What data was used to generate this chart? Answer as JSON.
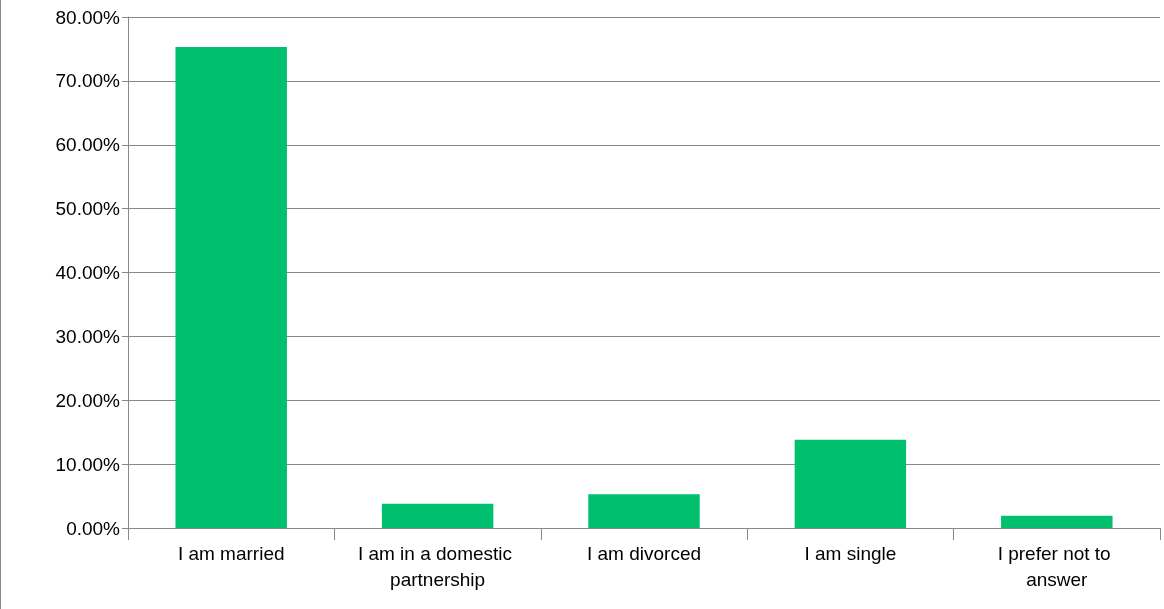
{
  "chart_data": {
    "type": "bar",
    "categories": [
      "I am married",
      "I am in a domestic partnership",
      "I am divorced",
      "I am single",
      "I prefer not to answer"
    ],
    "values": [
      75.3,
      3.8,
      5.3,
      13.8,
      1.9
    ],
    "color": "#00c070",
    "ylim": [
      0,
      80
    ],
    "yticks": [
      {
        "value": 0,
        "label": "0.00%"
      },
      {
        "value": 10,
        "label": "10.00%"
      },
      {
        "value": 20,
        "label": "20.00%"
      },
      {
        "value": 30,
        "label": "30.00%"
      },
      {
        "value": 40,
        "label": "40.00%"
      },
      {
        "value": 50,
        "label": "50.00%"
      },
      {
        "value": 60,
        "label": "60.00%"
      },
      {
        "value": 70,
        "label": "70.00%"
      },
      {
        "value": 80,
        "label": "80.00%"
      }
    ],
    "grid": "y"
  }
}
